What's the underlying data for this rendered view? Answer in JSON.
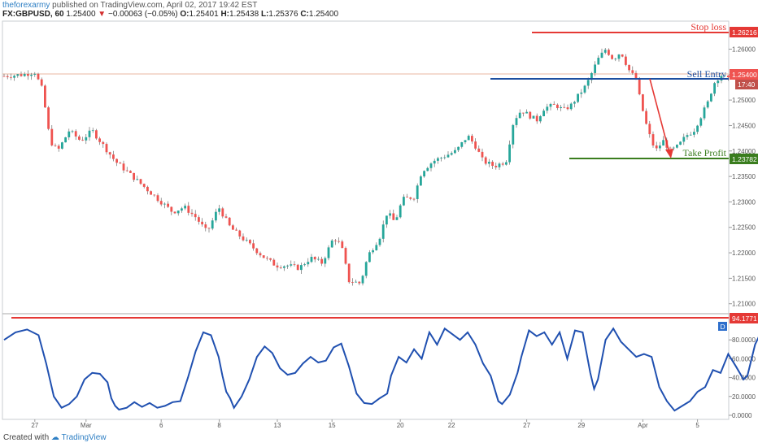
{
  "header": {
    "author": "theforexarmy",
    "published": "published on TradingView.com, April 02, 2017 19:42 EST",
    "symbol": "FX:GBPUSD, 60",
    "last": "1.25400",
    "change": "−0.00063 (−0.05%)",
    "o_label": "O:",
    "o": "1.25401",
    "h_label": "H:",
    "h": "1.25438",
    "l_label": "L:",
    "l": "1.25376",
    "c_label": "C:",
    "c": "1.25400"
  },
  "footer": {
    "created_with": "Created with",
    "brand": "TradingView"
  },
  "colors": {
    "up": "#26a69a",
    "down": "#ef5350",
    "stop": "#e53935",
    "entry": "#1e4fa0",
    "tp": "#3a7d1e",
    "osc": "#2050b0"
  },
  "chart_data": [
    {
      "type": "candlestick",
      "title": "",
      "ylim": [
        1.2082,
        1.2655
      ],
      "y_ticks": [
        "1.26000",
        "1.25500",
        "1.25000",
        "1.24500",
        "1.24000",
        "1.23500",
        "1.23000",
        "1.22500",
        "1.22000",
        "1.21500",
        "1.21000"
      ],
      "x_tick_labels": [
        "27",
        "Mar",
        "6",
        "8",
        "13",
        "15",
        "20",
        "22",
        "27",
        "29",
        "Apr",
        "5"
      ],
      "x_tick_index": [
        9,
        24,
        46,
        63,
        80,
        96,
        116,
        131,
        153,
        169,
        187,
        203
      ],
      "n_candles": 213,
      "close_path": [
        [
          0,
          1.2547
        ],
        [
          5,
          1.255
        ],
        [
          8,
          1.2555
        ],
        [
          10,
          1.252
        ],
        [
          12,
          1.242
        ],
        [
          14,
          1.24
        ],
        [
          17,
          1.244
        ],
        [
          20,
          1.242
        ],
        [
          23,
          1.244
        ],
        [
          26,
          1.241
        ],
        [
          29,
          1.238
        ],
        [
          32,
          1.236
        ],
        [
          35,
          1.234
        ],
        [
          38,
          1.232
        ],
        [
          41,
          1.23
        ],
        [
          44,
          1.228
        ],
        [
          47,
          1.229
        ],
        [
          50,
          1.227
        ],
        [
          53,
          1.224
        ],
        [
          56,
          1.229
        ],
        [
          59,
          1.225
        ],
        [
          62,
          1.223
        ],
        [
          65,
          1.221
        ],
        [
          68,
          1.219
        ],
        [
          71,
          1.2175
        ],
        [
          74,
          1.2175
        ],
        [
          77,
          1.217
        ],
        [
          80,
          1.219
        ],
        [
          83,
          1.218
        ],
        [
          86,
          1.223
        ],
        [
          88,
          1.2215
        ],
        [
          90,
          1.2145
        ],
        [
          93,
          1.214
        ],
        [
          95,
          1.2195
        ],
        [
          98,
          1.223
        ],
        [
          100,
          1.228
        ],
        [
          102,
          1.226
        ],
        [
          104,
          1.2305
        ],
        [
          107,
          1.231
        ],
        [
          109,
          1.236
        ],
        [
          112,
          1.238
        ],
        [
          115,
          1.239
        ],
        [
          118,
          1.24
        ],
        [
          121,
          1.243
        ],
        [
          123,
          1.241
        ],
        [
          125,
          1.238
        ],
        [
          128,
          1.237
        ],
        [
          131,
          1.238
        ],
        [
          133,
          1.246
        ],
        [
          135,
          1.248
        ],
        [
          137,
          1.247
        ],
        [
          139,
          1.246
        ],
        [
          141,
          1.2485
        ],
        [
          144,
          1.249
        ],
        [
          146,
          1.248
        ],
        [
          148,
          1.249
        ],
        [
          150,
          1.251
        ],
        [
          152,
          1.253
        ],
        [
          155,
          1.258
        ],
        [
          157,
          1.26
        ],
        [
          159,
          1.258
        ],
        [
          161,
          1.2595
        ],
        [
          163,
          1.256
        ],
        [
          165,
          1.254
        ],
        [
          166,
          1.25
        ],
        [
          168,
          1.244
        ],
        [
          170,
          1.24
        ],
        [
          172,
          1.242
        ],
        [
          174,
          1.24
        ],
        [
          176,
          1.241
        ],
        [
          178,
          1.243
        ],
        [
          180,
          1.244
        ],
        [
          182,
          1.247
        ],
        [
          184,
          1.25
        ],
        [
          185,
          1.253
        ],
        [
          187,
          1.255
        ],
        [
          189,
          1.254
        ]
      ],
      "stoch_path": [
        [
          0,
          80
        ],
        [
          3,
          88
        ],
        [
          6,
          91
        ],
        [
          9,
          85
        ],
        [
          11,
          55
        ],
        [
          13,
          20
        ],
        [
          15,
          8
        ],
        [
          17,
          12
        ],
        [
          19,
          20
        ],
        [
          21,
          38
        ],
        [
          23,
          45
        ],
        [
          25,
          44
        ],
        [
          27,
          35
        ],
        [
          28,
          18
        ],
        [
          29,
          10
        ],
        [
          30,
          6
        ],
        [
          32,
          8
        ],
        [
          34,
          14
        ],
        [
          36,
          9
        ],
        [
          38,
          13
        ],
        [
          40,
          8
        ],
        [
          42,
          10
        ],
        [
          44,
          14
        ],
        [
          46,
          15
        ],
        [
          48,
          40
        ],
        [
          50,
          68
        ],
        [
          52,
          88
        ],
        [
          54,
          85
        ],
        [
          56,
          62
        ],
        [
          57,
          42
        ],
        [
          58,
          25
        ],
        [
          59,
          18
        ],
        [
          60,
          8
        ],
        [
          62,
          20
        ],
        [
          64,
          38
        ],
        [
          66,
          62
        ],
        [
          68,
          73
        ],
        [
          70,
          66
        ],
        [
          72,
          50
        ],
        [
          74,
          43
        ],
        [
          76,
          45
        ],
        [
          78,
          55
        ],
        [
          80,
          62
        ],
        [
          82,
          56
        ],
        [
          84,
          58
        ],
        [
          86,
          72
        ],
        [
          88,
          76
        ],
        [
          90,
          52
        ],
        [
          92,
          23
        ],
        [
          94,
          13
        ],
        [
          96,
          12
        ],
        [
          98,
          18
        ],
        [
          100,
          23
        ],
        [
          101,
          42
        ],
        [
          103,
          62
        ],
        [
          105,
          56
        ],
        [
          107,
          70
        ],
        [
          109,
          60
        ],
        [
          111,
          88
        ],
        [
          113,
          75
        ],
        [
          115,
          92
        ],
        [
          117,
          86
        ],
        [
          119,
          80
        ],
        [
          121,
          88
        ],
        [
          123,
          75
        ],
        [
          125,
          55
        ],
        [
          127,
          42
        ],
        [
          129,
          15
        ],
        [
          130,
          12
        ],
        [
          132,
          22
        ],
        [
          134,
          45
        ],
        [
          135,
          62
        ],
        [
          137,
          90
        ],
        [
          139,
          84
        ],
        [
          141,
          88
        ],
        [
          143,
          75
        ],
        [
          145,
          88
        ],
        [
          147,
          60
        ],
        [
          149,
          90
        ],
        [
          151,
          88
        ],
        [
          153,
          45
        ],
        [
          154,
          28
        ],
        [
          155,
          38
        ],
        [
          157,
          80
        ],
        [
          159,
          92
        ],
        [
          161,
          78
        ],
        [
          163,
          70
        ],
        [
          165,
          62
        ],
        [
          167,
          65
        ],
        [
          169,
          62
        ],
        [
          171,
          30
        ],
        [
          173,
          15
        ],
        [
          175,
          5
        ],
        [
          177,
          10
        ],
        [
          179,
          15
        ],
        [
          181,
          25
        ],
        [
          183,
          30
        ],
        [
          185,
          48
        ],
        [
          187,
          45
        ],
        [
          189,
          65
        ],
        [
          191,
          52
        ],
        [
          193,
          38
        ],
        [
          194,
          42
        ],
        [
          196,
          75
        ],
        [
          198,
          92
        ],
        [
          200,
          88
        ],
        [
          201,
          84
        ]
      ]
    }
  ],
  "levels": {
    "stop_loss": {
      "label": "Stop loss",
      "value": "1.26216"
    },
    "sell_entry": {
      "label": "Sell Entry",
      "value": "1.25400",
      "countdown": "17:40"
    },
    "take_profit": {
      "label": "Take Profit",
      "value": "1.23782"
    }
  },
  "oscillator": {
    "y_ticks": [
      "80.0000",
      "60.0000",
      "40.0000",
      "20.0000",
      "0.0000"
    ],
    "ylim": [
      0,
      100
    ],
    "level_value": "94.1771",
    "legend_badge": "D"
  }
}
